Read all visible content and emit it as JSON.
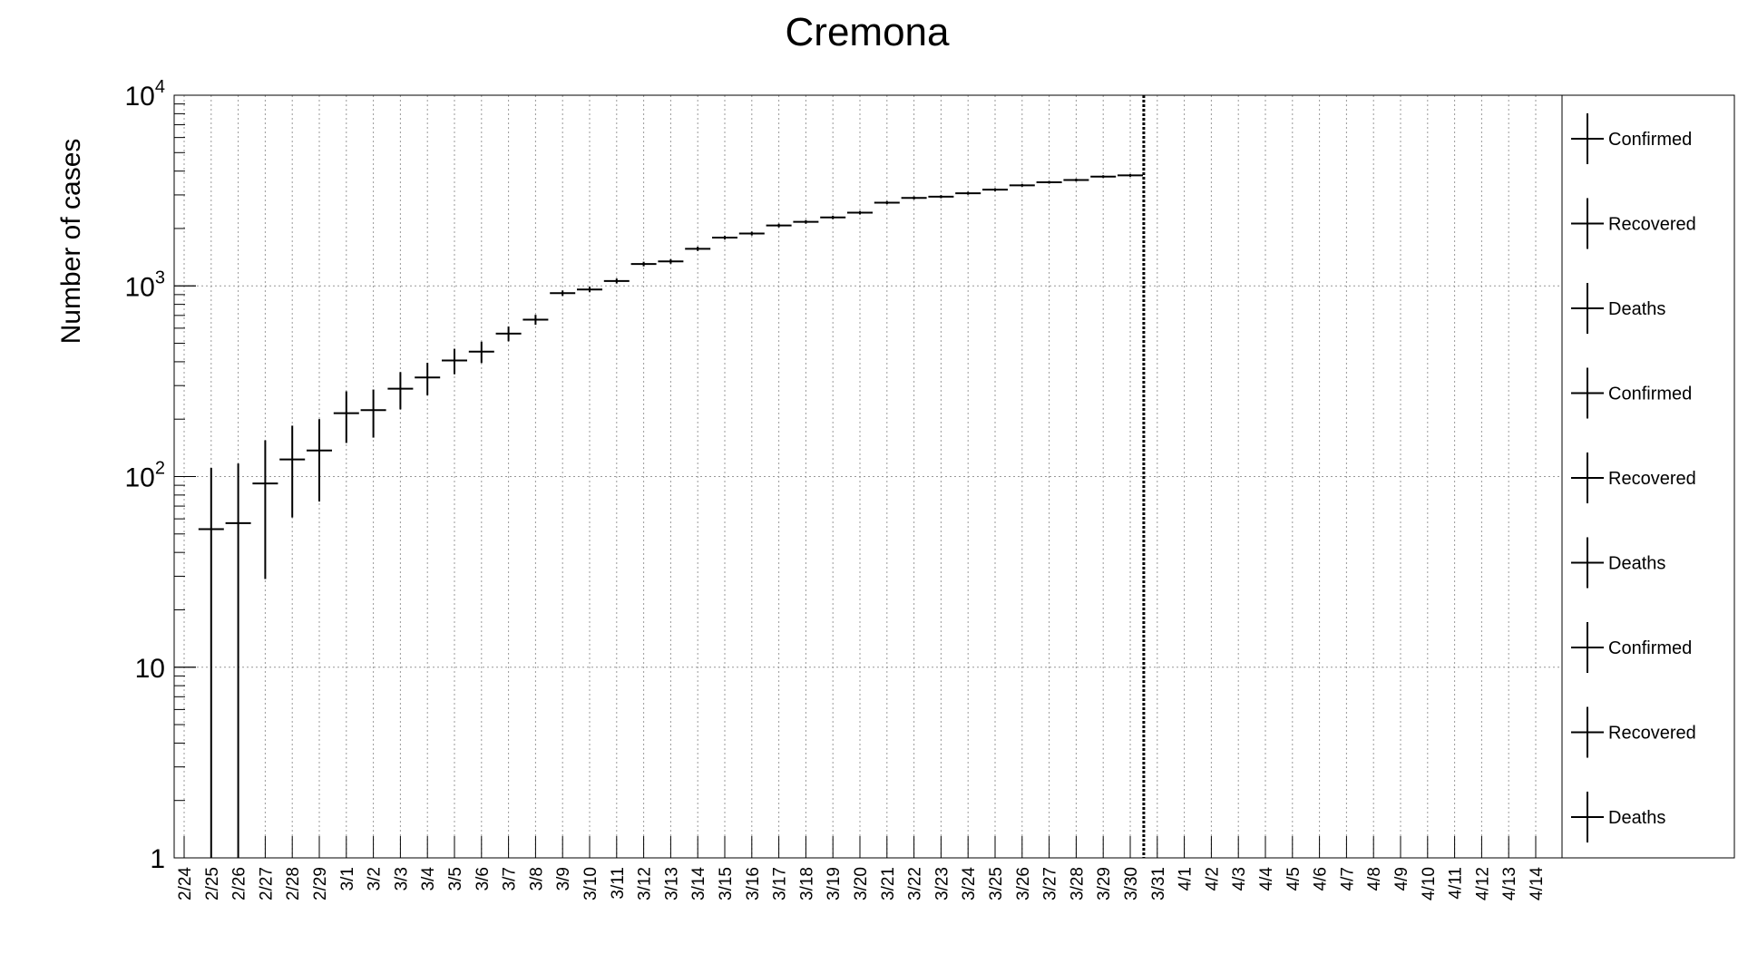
{
  "chart_data": {
    "type": "scatter",
    "title": "Cremona",
    "xlabel": "",
    "ylabel": "Number of cases",
    "y_scale": "log",
    "ylim": [
      1,
      10000
    ],
    "y_ticks": [
      {
        "value": 1,
        "base": "1",
        "exp": ""
      },
      {
        "value": 10,
        "base": "10",
        "exp": ""
      },
      {
        "value": 100,
        "base": "10",
        "exp": "2"
      },
      {
        "value": 1000,
        "base": "10",
        "exp": "3"
      },
      {
        "value": 10000,
        "base": "10",
        "exp": "4"
      }
    ],
    "grid": true,
    "error_bars": true,
    "legend_position": "right",
    "vertical_marker_at": "3/31",
    "categories": [
      "2/24",
      "2/25",
      "2/26",
      "2/27",
      "2/28",
      "2/29",
      "3/1",
      "3/2",
      "3/3",
      "3/4",
      "3/5",
      "3/6",
      "3/7",
      "3/8",
      "3/9",
      "3/10",
      "3/11",
      "3/12",
      "3/13",
      "3/14",
      "3/15",
      "3/16",
      "3/17",
      "3/18",
      "3/19",
      "3/20",
      "3/21",
      "3/22",
      "3/23",
      "3/24",
      "3/25",
      "3/26",
      "3/27",
      "3/28",
      "3/29",
      "3/30",
      "3/31",
      "4/1",
      "4/2",
      "4/3",
      "4/4",
      "4/5",
      "4/6",
      "4/7",
      "4/8",
      "4/9",
      "4/10",
      "4/11",
      "4/12",
      "4/13",
      "4/14"
    ],
    "series": [
      {
        "name": "Confirmed",
        "color": "#000000",
        "points": [
          {
            "x": "2/25",
            "y": 53,
            "err": 58
          },
          {
            "x": "2/26",
            "y": 57,
            "err": 60
          },
          {
            "x": "2/27",
            "y": 92,
            "err": 63
          },
          {
            "x": "2/28",
            "y": 123,
            "err": 62
          },
          {
            "x": "2/29",
            "y": 137,
            "err": 63
          },
          {
            "x": "3/1",
            "y": 215,
            "err": 65
          },
          {
            "x": "3/2",
            "y": 223,
            "err": 63
          },
          {
            "x": "3/3",
            "y": 289,
            "err": 64
          },
          {
            "x": "3/4",
            "y": 331,
            "err": 64
          },
          {
            "x": "3/5",
            "y": 406,
            "err": 62
          },
          {
            "x": "3/6",
            "y": 452,
            "err": 58
          },
          {
            "x": "3/7",
            "y": 562,
            "err": 50
          },
          {
            "x": "3/8",
            "y": 665,
            "err": 40
          },
          {
            "x": "3/9",
            "y": 916,
            "err": 30
          },
          {
            "x": "3/10",
            "y": 957,
            "err": 31
          },
          {
            "x": "3/11",
            "y": 1061,
            "err": 32
          },
          {
            "x": "3/12",
            "y": 1302,
            "err": 36
          },
          {
            "x": "3/13",
            "y": 1344,
            "err": 37
          },
          {
            "x": "3/14",
            "y": 1565,
            "err": 40
          },
          {
            "x": "3/15",
            "y": 1792,
            "err": 42
          },
          {
            "x": "3/16",
            "y": 1881,
            "err": 43
          },
          {
            "x": "3/17",
            "y": 2073,
            "err": 46
          },
          {
            "x": "3/18",
            "y": 2167,
            "err": 47
          },
          {
            "x": "3/19",
            "y": 2286,
            "err": 48
          },
          {
            "x": "3/20",
            "y": 2421,
            "err": 49
          },
          {
            "x": "3/21",
            "y": 2733,
            "err": 52
          },
          {
            "x": "3/22",
            "y": 2895,
            "err": 54
          },
          {
            "x": "3/23",
            "y": 2936,
            "err": 54
          },
          {
            "x": "3/24",
            "y": 3061,
            "err": 55
          },
          {
            "x": "3/25",
            "y": 3195,
            "err": 57
          },
          {
            "x": "3/26",
            "y": 3370,
            "err": 58
          },
          {
            "x": "3/27",
            "y": 3496,
            "err": 59
          },
          {
            "x": "3/28",
            "y": 3591,
            "err": 60
          },
          {
            "x": "3/29",
            "y": 3744,
            "err": 61
          },
          {
            "x": "3/30",
            "y": 3797,
            "err": 62
          }
        ]
      }
    ],
    "legend": [
      {
        "label": "Confirmed"
      },
      {
        "label": "Recovered"
      },
      {
        "label": "Deaths"
      },
      {
        "label": "Confirmed"
      },
      {
        "label": "Recovered"
      },
      {
        "label": "Deaths"
      },
      {
        "label": "Confirmed"
      },
      {
        "label": "Recovered"
      },
      {
        "label": "Deaths"
      }
    ]
  }
}
